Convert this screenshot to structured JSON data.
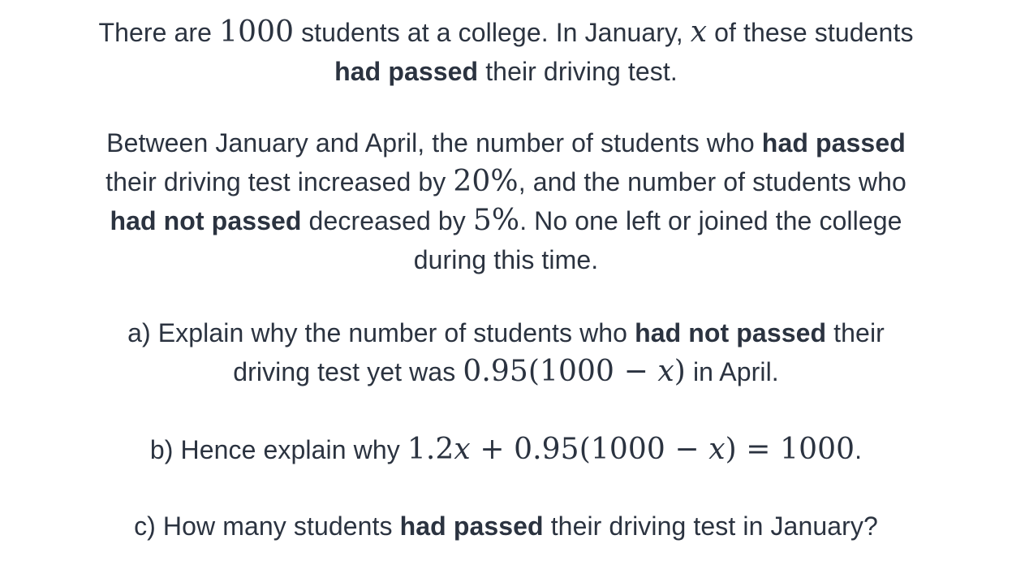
{
  "intro": {
    "line1": {
      "t1": "There are ",
      "m1": "1000",
      "t2": " students at a college. In January, ",
      "m2": "x",
      "t3": " of these students"
    },
    "line2": {
      "b1": "had passed",
      "t1": " their driving test."
    }
  },
  "change": {
    "line1": {
      "t1": "Between January and April, the number of students who ",
      "b1": "had passed"
    },
    "line2": {
      "t1": "their driving test increased by ",
      "m1": "20%",
      "t2": ", and the number of students who"
    },
    "line3": {
      "b1": "had not passed",
      "t1": " decreased by ",
      "m1": "5%",
      "t2": ". No one left or joined the college"
    },
    "line4": {
      "t1": "during this time."
    }
  },
  "part_a": {
    "line1": {
      "t1": "a) Explain why the number of students who ",
      "b1": "had not passed",
      "t2": " their"
    },
    "line2": {
      "t1": "driving test yet was ",
      "m1a": "0.95(1000 − ",
      "m1b": "x",
      "m1c": ")",
      "t2": " in April."
    }
  },
  "part_b": {
    "line1": {
      "t1": "b) Hence explain why ",
      "m1a": "1.2",
      "m1b": "x",
      "m1c": " + 0.95(1000 − ",
      "m1d": "x",
      "m1e": ") = 1000",
      "t2": "."
    }
  },
  "part_c": {
    "line1": {
      "t1": "c) How many students ",
      "b1": "had passed",
      "t2": " their driving test in January?"
    }
  }
}
